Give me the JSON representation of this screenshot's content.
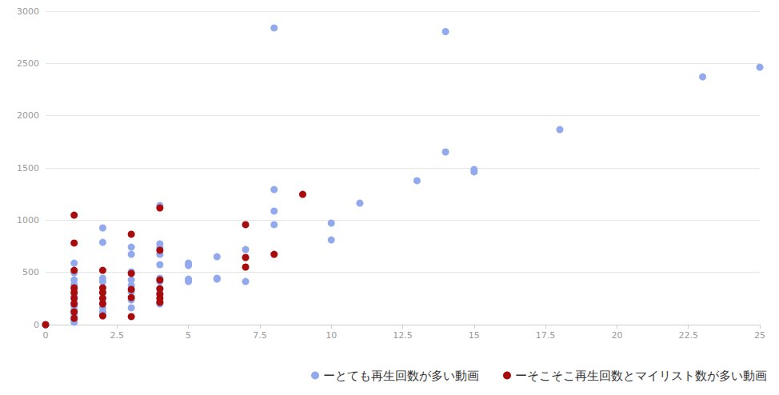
{
  "chart_data": {
    "type": "scatter",
    "xlim": [
      0,
      25
    ],
    "xticks": [
      0,
      2.5,
      5,
      7.5,
      10,
      12.5,
      15,
      17.5,
      20,
      22.5,
      25
    ],
    "ylim": [
      0,
      3000
    ],
    "yticks": [
      0,
      500,
      1000,
      1500,
      2000,
      2500,
      3000
    ],
    "grid": true,
    "legend": "bottom-right",
    "marker": "circle",
    "series": [
      {
        "name": "ーとても再生回数が多い動画",
        "color": "#93a9ee",
        "x": [
          8,
          14,
          23,
          25,
          18,
          14,
          15,
          15,
          13,
          11,
          10,
          10,
          8,
          8,
          8,
          7,
          7,
          6,
          6,
          6,
          5,
          5,
          5,
          5,
          4,
          4,
          4,
          4,
          4,
          4,
          4,
          4,
          4,
          4,
          4,
          3,
          3,
          3,
          3,
          3,
          3,
          3,
          3,
          2,
          2,
          2,
          2,
          2,
          2,
          2,
          2,
          2,
          1,
          1,
          1,
          1,
          1,
          1,
          1,
          1,
          1,
          1,
          1,
          1,
          0
        ],
        "values": [
          2840,
          2805,
          2372,
          2464,
          1867,
          1653,
          1485,
          1462,
          1378,
          1163,
          972,
          811,
          1293,
          1087,
          957,
          719,
          413,
          650,
          444,
          436,
          589,
          566,
          436,
          413,
          1140,
          773,
          735,
          673,
          574,
          444,
          413,
          344,
          306,
          214,
          199,
          742,
          673,
          505,
          428,
          375,
          314,
          237,
          161,
          926,
          788,
          444,
          413,
          314,
          214,
          161,
          122,
          99,
          589,
          497,
          428,
          383,
          337,
          276,
          214,
          176,
          138,
          92,
          46,
          23,
          0
        ]
      },
      {
        "name": "ーそこそこ再生回数とマイリスト数が多い動画",
        "color": "#a80c0c",
        "x": [
          9,
          7,
          7,
          7,
          8,
          4,
          4,
          4,
          4,
          4,
          4,
          4,
          3,
          3,
          3,
          3,
          3,
          2,
          2,
          2,
          2,
          2,
          2,
          1,
          1,
          1,
          1,
          1,
          1,
          1,
          1,
          1,
          0
        ],
        "values": [
          1247,
          957,
          643,
          551,
          673,
          1117,
          712,
          428,
          344,
          291,
          253,
          214,
          865,
          490,
          337,
          260,
          77,
          520,
          352,
          306,
          253,
          199,
          84,
          1048,
          781,
          520,
          352,
          306,
          253,
          199,
          122,
          61,
          0
        ]
      }
    ]
  }
}
